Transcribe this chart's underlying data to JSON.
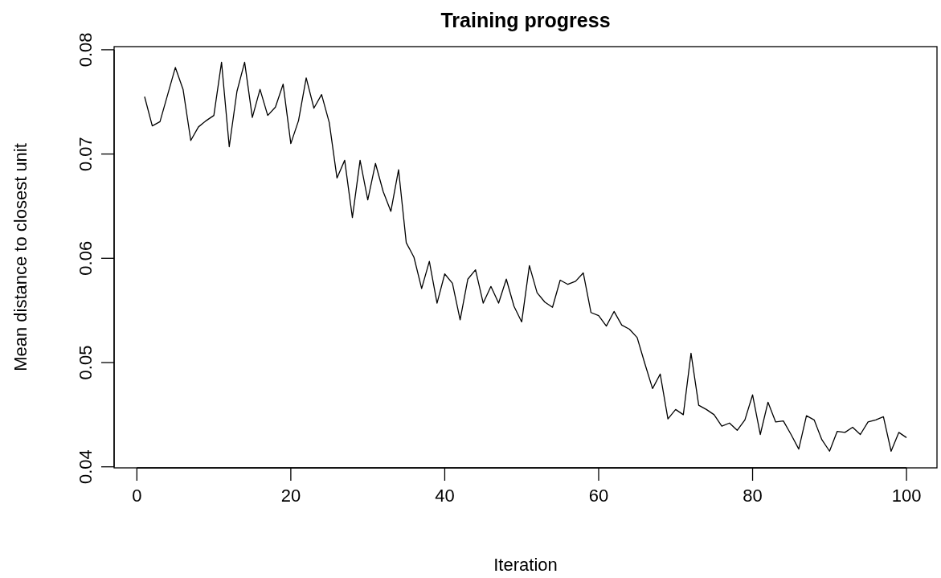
{
  "chart_data": {
    "type": "line",
    "title": "Training progress",
    "xlabel": "Iteration",
    "ylabel": "Mean distance to closest unit",
    "x": [
      1,
      2,
      3,
      4,
      5,
      6,
      7,
      8,
      9,
      10,
      11,
      12,
      13,
      14,
      15,
      16,
      17,
      18,
      19,
      20,
      21,
      22,
      23,
      24,
      25,
      26,
      27,
      28,
      29,
      30,
      31,
      32,
      33,
      34,
      35,
      36,
      37,
      38,
      39,
      40,
      41,
      42,
      43,
      44,
      45,
      46,
      47,
      48,
      49,
      50,
      51,
      52,
      53,
      54,
      55,
      56,
      57,
      58,
      59,
      60,
      61,
      62,
      63,
      64,
      65,
      66,
      67,
      68,
      69,
      70,
      71,
      72,
      73,
      74,
      75,
      76,
      77,
      78,
      79,
      80,
      81,
      82,
      83,
      84,
      85,
      86,
      87,
      88,
      89,
      90,
      91,
      92,
      93,
      94,
      95,
      96,
      97,
      98,
      99,
      100
    ],
    "series": [
      {
        "color": "#000000",
        "values": [
          0.0755,
          0.0727,
          0.0731,
          0.0757,
          0.0783,
          0.0762,
          0.0713,
          0.0726,
          0.0732,
          0.0737,
          0.0788,
          0.0707,
          0.076,
          0.0788,
          0.0735,
          0.0762,
          0.0737,
          0.0745,
          0.0767,
          0.071,
          0.0732,
          0.0773,
          0.0744,
          0.0757,
          0.073,
          0.0677,
          0.0694,
          0.0639,
          0.0694,
          0.0656,
          0.0691,
          0.0664,
          0.0645,
          0.0685,
          0.0615,
          0.0601,
          0.0571,
          0.0597,
          0.0557,
          0.0585,
          0.0576,
          0.0541,
          0.058,
          0.0589,
          0.0557,
          0.0573,
          0.0557,
          0.058,
          0.0554,
          0.0539,
          0.0593,
          0.0567,
          0.0558,
          0.0553,
          0.0579,
          0.0575,
          0.0578,
          0.0586,
          0.0548,
          0.0545,
          0.0535,
          0.0549,
          0.0536,
          0.0532,
          0.0524,
          0.0499,
          0.0475,
          0.0489,
          0.0446,
          0.0455,
          0.045,
          0.0509,
          0.0459,
          0.0455,
          0.045,
          0.0439,
          0.0442,
          0.0435,
          0.0445,
          0.0469,
          0.0431,
          0.0462,
          0.0443,
          0.0444,
          0.0431,
          0.0417,
          0.0449,
          0.0445,
          0.0426,
          0.0415,
          0.0434,
          0.0433,
          0.0438,
          0.0431,
          0.0443,
          0.0445,
          0.0448,
          0.0415,
          0.0433,
          0.0428
        ]
      }
    ],
    "xlim": [
      -2.96,
      103.96
    ],
    "ylim": [
      0.0399,
      0.0803
    ],
    "xticks": [
      0,
      20,
      40,
      60,
      80,
      100
    ],
    "yticks": [
      0.04,
      0.05,
      0.06,
      0.07,
      0.08
    ],
    "grid": false,
    "marker": "none",
    "line_style": "solid"
  }
}
